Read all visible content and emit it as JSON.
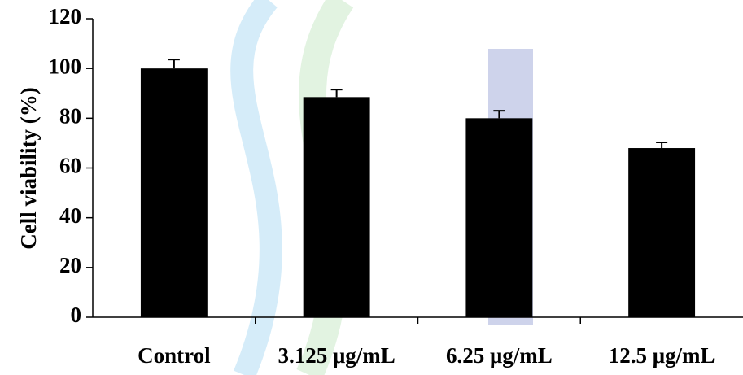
{
  "chart_data": {
    "type": "bar",
    "y_label": "Cell viability (%)",
    "categories": [
      "Control",
      "3.125 μg/mL",
      "6.25 μg/mL",
      "12.5 μg/mL"
    ],
    "values": [
      100,
      88.5,
      80,
      68
    ],
    "errors": [
      3.6,
      3,
      3,
      2.3
    ],
    "color": "#000000",
    "ylim": [
      0,
      120
    ],
    "yticks": [
      0,
      20,
      40,
      60,
      80,
      100,
      120
    ]
  }
}
